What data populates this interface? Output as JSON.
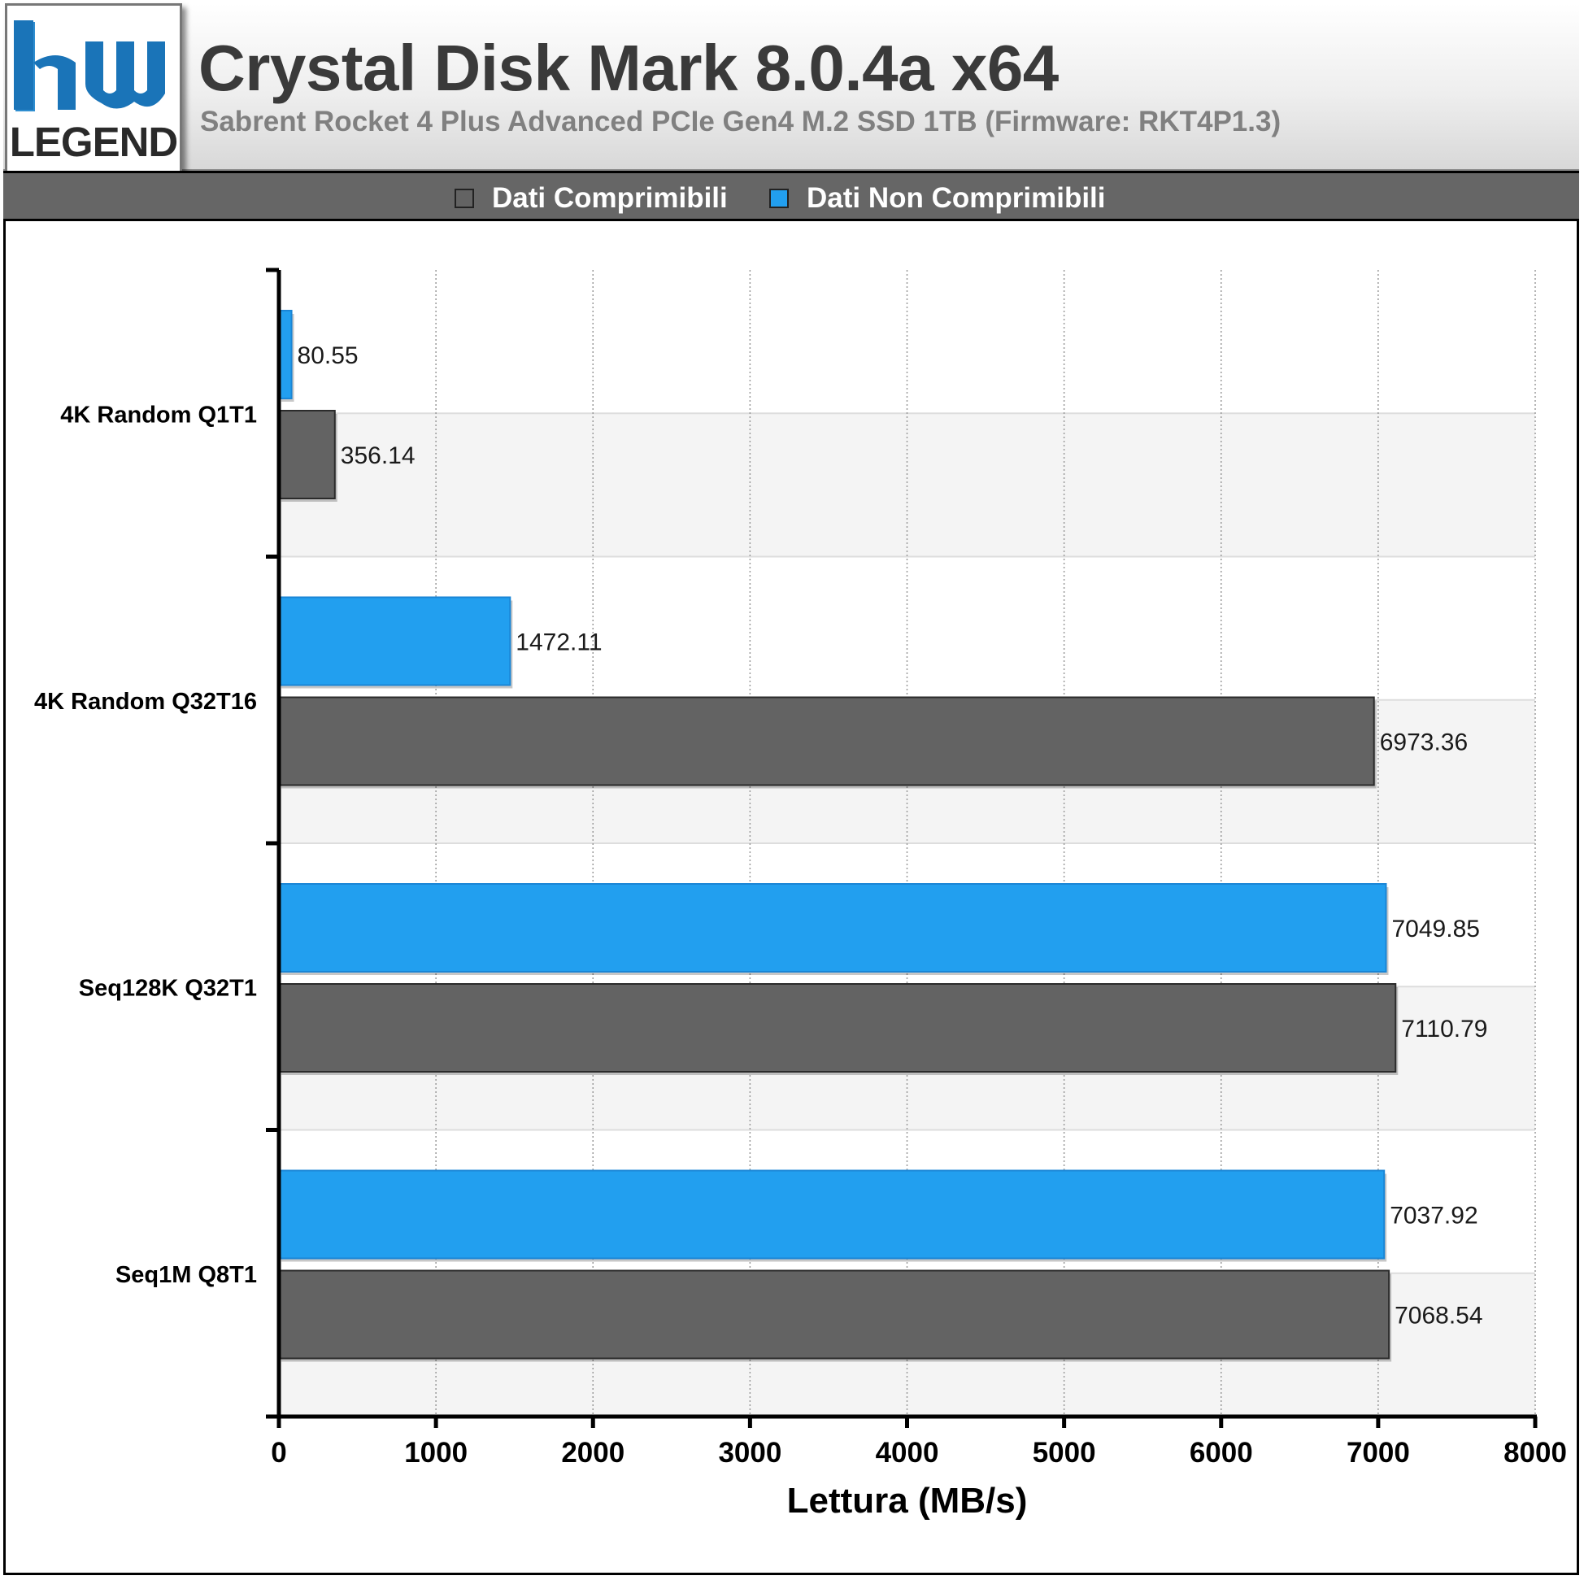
{
  "header": {
    "logo_text": "LEGEND",
    "title": "Crystal Disk Mark 8.0.4a x64",
    "subtitle": "Sabrent Rocket 4 Plus Advanced PCIe Gen4 M.2 SSD 1TB (Firmware: RKT4P1.3)"
  },
  "colors": {
    "compressible": "#636363",
    "incompressible": "#229fef",
    "legend_bar": "#666666"
  },
  "chart_data": {
    "type": "bar",
    "orientation": "horizontal",
    "title": "Crystal Disk Mark 8.0.4a x64",
    "subtitle": "Sabrent Rocket 4 Plus Advanced PCIe Gen4 M.2 SSD 1TB (Firmware: RKT4P1.3)",
    "xlabel": "Lettura (MB/s)",
    "ylabel": "",
    "xlim": [
      0,
      8000
    ],
    "xticks": [
      0,
      1000,
      2000,
      3000,
      4000,
      5000,
      6000,
      7000,
      8000
    ],
    "grid": "vertical dotted",
    "legend_position": "top",
    "categories": [
      "4K Random Q1T1",
      "4K Random Q32T16",
      "Seq128K Q32T1",
      "Seq1M Q8T1"
    ],
    "series": [
      {
        "name": "Dati Comprimibili",
        "color": "#636363",
        "values": [
          356.14,
          6973.36,
          7110.79,
          7068.54
        ]
      },
      {
        "name": "Dati Non Comprimibili",
        "color": "#229fef",
        "values": [
          80.55,
          1472.11,
          7049.85,
          7037.92
        ]
      }
    ],
    "value_labels": {
      "Dati Comprimibili": [
        "356.14",
        "6973.36",
        "7110.79",
        "7068.54"
      ],
      "Dati Non Comprimibili": [
        "80.55",
        "1472.11",
        "7049.85",
        "7037.92"
      ]
    }
  }
}
